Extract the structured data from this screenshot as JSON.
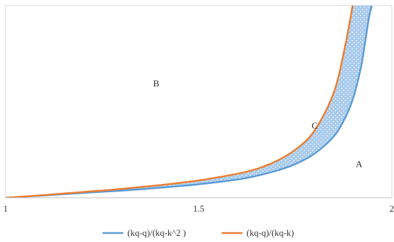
{
  "chart_data": {
    "type": "area",
    "title": "",
    "xlabel": "",
    "ylabel": "",
    "xlim": [
      1,
      2
    ],
    "ylim": [
      0,
      1
    ],
    "x_ticks": [
      "1",
      "1.5",
      "2"
    ],
    "y_ticks": [],
    "grid": false,
    "legend_placement": "bottom",
    "x": [
      1.0,
      1.1,
      1.2,
      1.3,
      1.4,
      1.5,
      1.6,
      1.65,
      1.7,
      1.75,
      1.8,
      1.85,
      1.88,
      1.9,
      1.92,
      1.93,
      1.94,
      1.95
    ],
    "series": [
      {
        "name": "(kq-q)/(kq-k^2 )",
        "color": "#5b9bd5",
        "values": [
          0.0,
          0.012,
          0.025,
          0.037,
          0.052,
          0.07,
          0.095,
          0.114,
          0.14,
          0.175,
          0.23,
          0.32,
          0.42,
          0.52,
          0.68,
          0.8,
          0.93,
          1.02
        ]
      },
      {
        "name": "(kq-q)/(kq-k)",
        "color": "#ed7d31",
        "values": [
          0.0,
          0.014,
          0.03,
          0.046,
          0.066,
          0.09,
          0.125,
          0.15,
          0.19,
          0.25,
          0.35,
          0.55,
          0.8,
          1.02,
          null,
          null,
          null,
          null
        ]
      }
    ],
    "shaded_region": {
      "between": [
        "(kq-q)/(kq-k^2 )",
        "(kq-q)/(kq-k)"
      ],
      "label": "C",
      "color": "#5b9bd5",
      "pattern": "dots"
    },
    "annotations": [
      {
        "text": "B",
        "x": 1.39,
        "y": 0.58
      },
      {
        "text": "C",
        "x": 1.8,
        "y": 0.36
      },
      {
        "text": "A",
        "x": 1.915,
        "y": 0.16
      }
    ]
  }
}
